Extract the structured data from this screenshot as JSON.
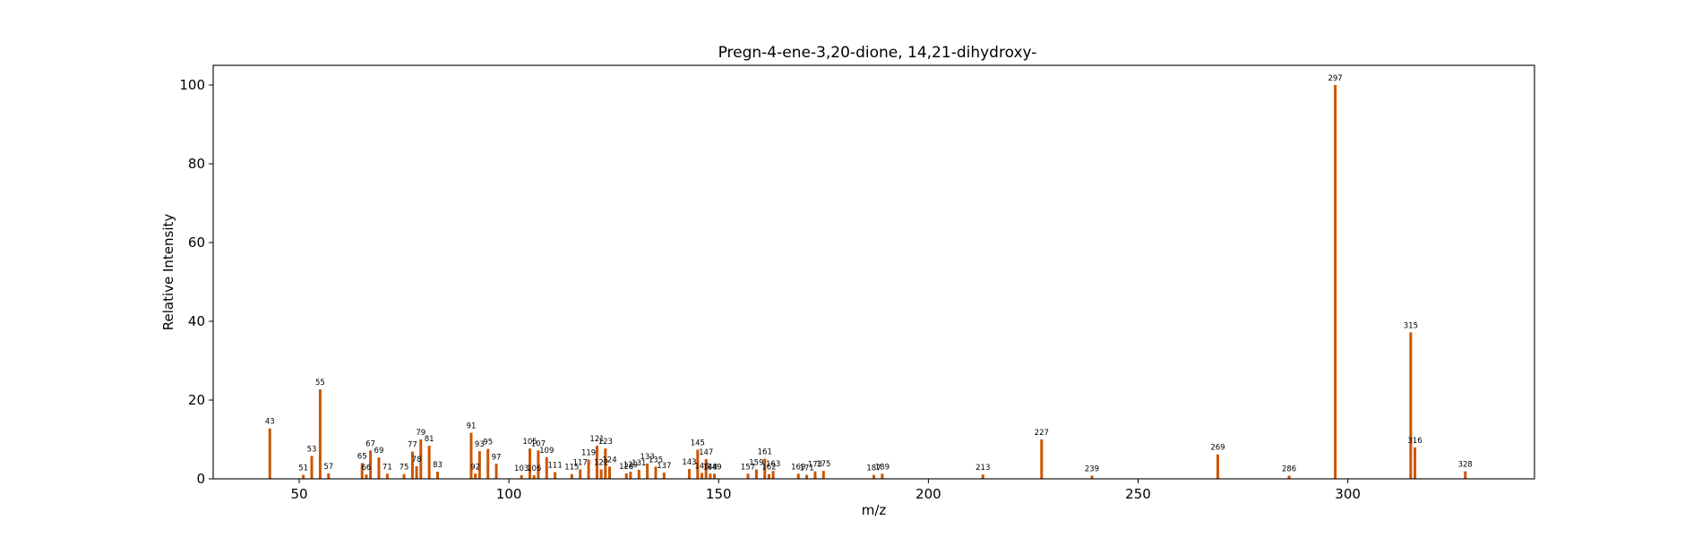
{
  "chart_data": {
    "type": "bar",
    "title": "Pregn-4-ene-3,20-dione, 14,21-dihydroxy-",
    "xlabel": "m/z",
    "ylabel": "Relative Intensity",
    "xlim": [
      29.5,
      344.5
    ],
    "ylim": [
      0,
      105
    ],
    "xticks": [
      50,
      100,
      150,
      200,
      250,
      300
    ],
    "yticks": [
      0,
      20,
      40,
      60,
      80,
      100
    ],
    "grid": false,
    "bar_color": "#cc5500",
    "peaks": [
      {
        "mz": 43,
        "intensity": 12.8
      },
      {
        "mz": 51,
        "intensity": 1.0
      },
      {
        "mz": 53,
        "intensity": 5.8
      },
      {
        "mz": 55,
        "intensity": 22.7
      },
      {
        "mz": 57,
        "intensity": 1.4
      },
      {
        "mz": 65,
        "intensity": 4.0
      },
      {
        "mz": 66,
        "intensity": 1.1
      },
      {
        "mz": 67,
        "intensity": 7.2
      },
      {
        "mz": 69,
        "intensity": 5.4
      },
      {
        "mz": 71,
        "intensity": 1.3
      },
      {
        "mz": 75,
        "intensity": 1.2
      },
      {
        "mz": 77,
        "intensity": 6.9
      },
      {
        "mz": 78,
        "intensity": 3.2
      },
      {
        "mz": 79,
        "intensity": 10.0
      },
      {
        "mz": 81,
        "intensity": 8.4
      },
      {
        "mz": 83,
        "intensity": 1.8
      },
      {
        "mz": 91,
        "intensity": 11.7
      },
      {
        "mz": 92,
        "intensity": 1.3
      },
      {
        "mz": 93,
        "intensity": 7.0
      },
      {
        "mz": 95,
        "intensity": 7.6
      },
      {
        "mz": 97,
        "intensity": 3.8
      },
      {
        "mz": 103,
        "intensity": 0.9
      },
      {
        "mz": 105,
        "intensity": 7.7
      },
      {
        "mz": 106,
        "intensity": 0.9
      },
      {
        "mz": 107,
        "intensity": 7.2
      },
      {
        "mz": 109,
        "intensity": 5.5
      },
      {
        "mz": 111,
        "intensity": 1.7
      },
      {
        "mz": 115,
        "intensity": 1.2
      },
      {
        "mz": 117,
        "intensity": 2.4
      },
      {
        "mz": 119,
        "intensity": 4.9
      },
      {
        "mz": 121,
        "intensity": 8.4
      },
      {
        "mz": 122,
        "intensity": 2.4
      },
      {
        "mz": 123,
        "intensity": 7.7
      },
      {
        "mz": 124,
        "intensity": 3.1
      },
      {
        "mz": 128,
        "intensity": 1.4
      },
      {
        "mz": 129,
        "intensity": 1.8
      },
      {
        "mz": 131,
        "intensity": 2.3
      },
      {
        "mz": 133,
        "intensity": 3.9
      },
      {
        "mz": 135,
        "intensity": 3.1
      },
      {
        "mz": 137,
        "intensity": 1.6
      },
      {
        "mz": 143,
        "intensity": 2.5
      },
      {
        "mz": 145,
        "intensity": 7.4
      },
      {
        "mz": 146,
        "intensity": 1.5
      },
      {
        "mz": 147,
        "intensity": 5.0
      },
      {
        "mz": 148,
        "intensity": 1.3
      },
      {
        "mz": 149,
        "intensity": 1.3
      },
      {
        "mz": 157,
        "intensity": 1.3
      },
      {
        "mz": 159,
        "intensity": 2.4
      },
      {
        "mz": 161,
        "intensity": 5.1
      },
      {
        "mz": 162,
        "intensity": 1.2
      },
      {
        "mz": 163,
        "intensity": 2.0
      },
      {
        "mz": 169,
        "intensity": 1.3
      },
      {
        "mz": 171,
        "intensity": 1.0
      },
      {
        "mz": 173,
        "intensity": 1.9
      },
      {
        "mz": 175,
        "intensity": 2.0
      },
      {
        "mz": 187,
        "intensity": 1.0
      },
      {
        "mz": 189,
        "intensity": 1.3
      },
      {
        "mz": 213,
        "intensity": 1.1
      },
      {
        "mz": 227,
        "intensity": 10.0
      },
      {
        "mz": 239,
        "intensity": 0.8
      },
      {
        "mz": 269,
        "intensity": 6.2
      },
      {
        "mz": 286,
        "intensity": 0.8
      },
      {
        "mz": 297,
        "intensity": 100.0
      },
      {
        "mz": 315,
        "intensity": 37.2
      },
      {
        "mz": 316,
        "intensity": 8.0
      },
      {
        "mz": 328,
        "intensity": 1.9
      }
    ]
  }
}
